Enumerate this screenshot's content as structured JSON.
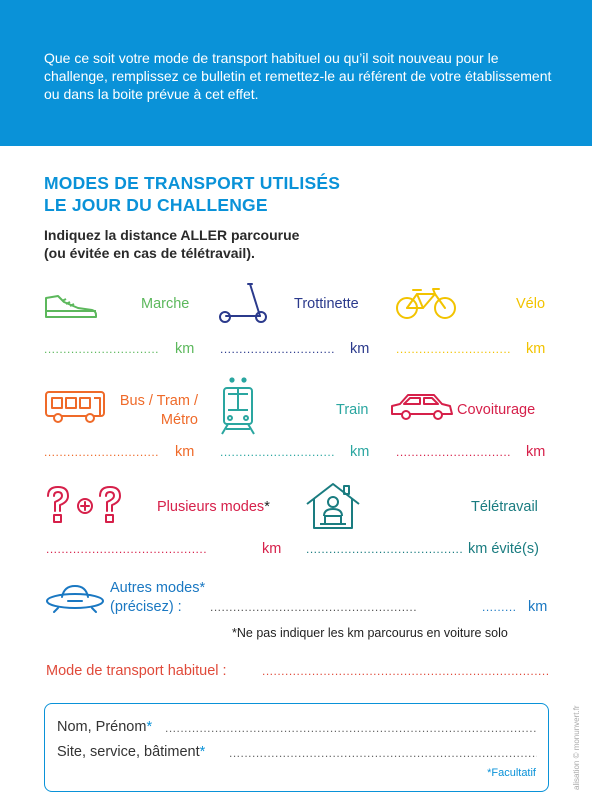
{
  "banner": {
    "text": "Que ce soit votre mode de transport habituel ou qu’il soit nouveau pour le challenge, remplissez ce bulletin et remettez-le au référent de votre établissement ou dans la boite prévue à cet effet."
  },
  "section": {
    "title_line1": "MODES DE TRANSPORT UTILISÉS",
    "title_line2": "LE JOUR DU CHALLENGE",
    "instruction_line1": "Indiquez la distance ALLER parcourue",
    "instruction_line2": "(ou évitée en cas de télétravail)."
  },
  "modes": {
    "marche": {
      "label": "Marche",
      "unit": "km",
      "icon": "walking-shoe-icon",
      "color": "#5cb85c"
    },
    "trottinette": {
      "label": "Trottinette",
      "unit": "km",
      "icon": "scooter-icon",
      "color": "#2b3a8c"
    },
    "velo": {
      "label": "Vélo",
      "unit": "km",
      "icon": "bicycle-icon",
      "color": "#f2c300"
    },
    "bus": {
      "label_line1": "Bus / Tram /",
      "label_line2": "Métro",
      "unit": "km",
      "icon": "bus-icon",
      "color": "#ef6a29"
    },
    "train": {
      "label": "Train",
      "unit": "km",
      "icon": "tram-icon",
      "color": "#2aa6a0"
    },
    "covoiturage": {
      "label": "Covoiturage",
      "unit": "km",
      "icon": "car-icon",
      "color": "#d6204a"
    },
    "plusieurs": {
      "label": "Plusieurs modes",
      "asterisk": "*",
      "unit": "km",
      "icon": "multiple-modes-icon",
      "color": "#d6204a"
    },
    "teletravail": {
      "label": "Télétravail",
      "unit": "km évité(s)",
      "icon": "home-office-icon",
      "color": "#1a7c80"
    },
    "autres": {
      "label_line1": "Autres modes*",
      "label_line2": "(précisez) :",
      "unit": "km",
      "icon": "ufo-icon",
      "color": "#1a78c2"
    }
  },
  "dots": {
    "short": "..............................",
    "medium": "..........................................",
    "long": "......................................................",
    "tiny": "........."
  },
  "note": "*Ne pas indiquer les km parcourus en voiture solo",
  "habit": {
    "label": "Mode de transport habituel :",
    "dots": ".................................................................................."
  },
  "form": {
    "name_label": "Nom, Prénom",
    "name_ast": "*",
    "site_label": "Site, service, bâtiment",
    "site_ast": "*",
    "dots": "......................................................................................................",
    "facultatif": "*Facultatif"
  },
  "credit": "alisation © monunvert.fr"
}
